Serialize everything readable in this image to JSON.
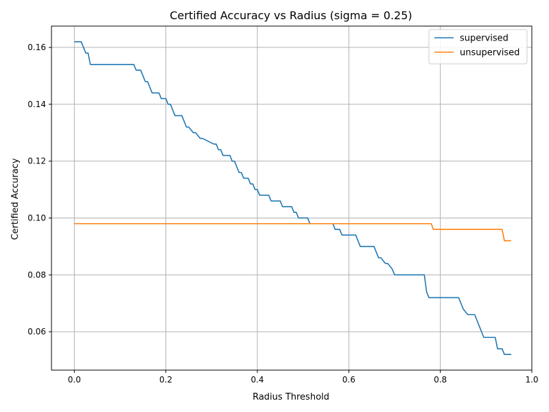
{
  "chart_data": {
    "type": "line",
    "title": "Certified Accuracy vs Radius (sigma = 0.25)",
    "xlabel": "Radius Threshold",
    "ylabel": "Certified Accuracy",
    "xlim": [
      -0.05,
      1.0
    ],
    "ylim": [
      0.0465,
      0.1675
    ],
    "xticks": [
      0.0,
      0.2,
      0.4,
      0.6,
      0.8,
      1.0
    ],
    "xtick_labels": [
      "0.0",
      "0.2",
      "0.4",
      "0.6",
      "0.8",
      "1.0"
    ],
    "yticks": [
      0.06,
      0.08,
      0.1,
      0.12,
      0.14,
      0.16
    ],
    "ytick_labels": [
      "0.06",
      "0.08",
      "0.10",
      "0.12",
      "0.14",
      "0.16"
    ],
    "grid": true,
    "legend_position": "top-right",
    "series": [
      {
        "name": "supervised",
        "color": "#1f77b4",
        "x": [
          0.0,
          0.015,
          0.02,
          0.025,
          0.03,
          0.035,
          0.13,
          0.135,
          0.145,
          0.15,
          0.155,
          0.16,
          0.165,
          0.17,
          0.185,
          0.19,
          0.2,
          0.205,
          0.21,
          0.215,
          0.22,
          0.235,
          0.24,
          0.245,
          0.25,
          0.26,
          0.265,
          0.275,
          0.28,
          0.305,
          0.31,
          0.315,
          0.32,
          0.325,
          0.34,
          0.345,
          0.35,
          0.355,
          0.36,
          0.365,
          0.37,
          0.38,
          0.385,
          0.39,
          0.395,
          0.4,
          0.405,
          0.425,
          0.43,
          0.45,
          0.455,
          0.475,
          0.48,
          0.485,
          0.49,
          0.51,
          0.515,
          0.565,
          0.57,
          0.58,
          0.585,
          0.59,
          0.615,
          0.62,
          0.625,
          0.655,
          0.66,
          0.665,
          0.67,
          0.68,
          0.685,
          0.695,
          0.7,
          0.765,
          0.77,
          0.775,
          0.84,
          0.85,
          0.86,
          0.875,
          0.885,
          0.895,
          0.92,
          0.925,
          0.935,
          0.94,
          0.955
        ],
        "values": [
          0.162,
          0.162,
          0.16,
          0.158,
          0.158,
          0.154,
          0.154,
          0.152,
          0.152,
          0.15,
          0.148,
          0.148,
          0.146,
          0.144,
          0.144,
          0.142,
          0.142,
          0.14,
          0.14,
          0.138,
          0.136,
          0.136,
          0.134,
          0.132,
          0.132,
          0.13,
          0.13,
          0.128,
          0.128,
          0.126,
          0.126,
          0.124,
          0.124,
          0.122,
          0.122,
          0.12,
          0.12,
          0.118,
          0.116,
          0.116,
          0.114,
          0.114,
          0.112,
          0.112,
          0.11,
          0.11,
          0.108,
          0.108,
          0.106,
          0.106,
          0.104,
          0.104,
          0.102,
          0.102,
          0.1,
          0.1,
          0.098,
          0.098,
          0.096,
          0.096,
          0.094,
          0.094,
          0.094,
          0.092,
          0.09,
          0.09,
          0.088,
          0.086,
          0.086,
          0.084,
          0.084,
          0.082,
          0.08,
          0.08,
          0.074,
          0.072,
          0.072,
          0.068,
          0.066,
          0.066,
          0.062,
          0.058,
          0.058,
          0.054,
          0.054,
          0.052,
          0.052
        ]
      },
      {
        "name": "unsupervised",
        "color": "#ff7f0e",
        "x": [
          0.0,
          0.78,
          0.785,
          0.935,
          0.94,
          0.955
        ],
        "values": [
          0.098,
          0.098,
          0.096,
          0.096,
          0.092,
          0.092
        ]
      }
    ]
  }
}
